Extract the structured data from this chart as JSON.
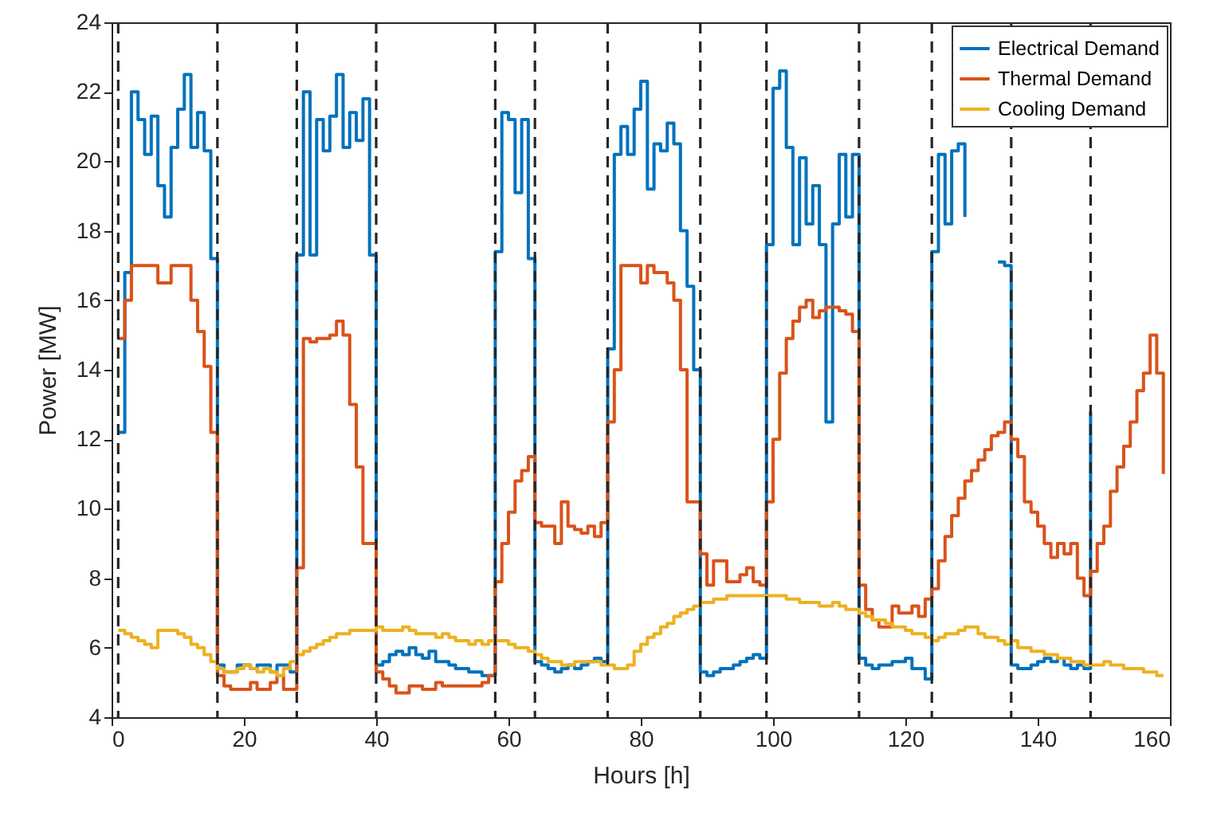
{
  "chart_data": {
    "type": "step",
    "xlabel": "Hours [h]",
    "ylabel": "Power [MW]",
    "xlim": [
      0,
      160
    ],
    "xticks": [
      0,
      20,
      40,
      60,
      80,
      100,
      120,
      140,
      160
    ],
    "ylim": [
      4,
      24
    ],
    "yticks": [
      4,
      6,
      8,
      10,
      12,
      14,
      16,
      18,
      20,
      22,
      24
    ],
    "legend": "top right",
    "grid": false,
    "x": [
      1,
      2,
      3,
      4,
      5,
      6,
      7,
      8,
      9,
      10,
      11,
      12,
      13,
      14,
      15,
      16,
      17,
      18,
      19,
      20,
      21,
      22,
      23,
      24,
      25,
      26,
      27,
      28,
      29,
      30,
      31,
      32,
      33,
      34,
      35,
      36,
      37,
      38,
      39,
      40,
      41,
      42,
      43,
      44,
      45,
      46,
      47,
      48,
      49,
      50,
      51,
      52,
      53,
      54,
      55,
      56,
      57,
      58,
      59,
      60,
      61,
      62,
      63,
      64,
      65,
      66,
      67,
      68,
      69,
      70,
      71,
      72,
      73,
      74,
      75,
      76,
      77,
      78,
      79,
      80,
      81,
      82,
      83,
      84,
      85,
      86,
      87,
      88,
      89,
      90,
      91,
      92,
      93,
      94,
      95,
      96,
      97,
      98,
      99,
      100,
      101,
      102,
      103,
      104,
      105,
      106,
      107,
      108,
      109,
      110,
      111,
      112,
      113,
      114,
      115,
      116,
      117,
      118,
      119,
      120,
      121,
      122,
      123,
      124,
      125,
      126,
      127,
      128,
      129,
      130,
      131,
      132,
      133,
      134,
      135,
      136,
      137,
      138,
      139,
      140,
      141,
      142,
      143,
      144,
      145,
      146,
      147,
      148,
      149,
      150,
      151,
      152,
      153,
      154,
      155,
      156,
      157,
      158,
      159
    ],
    "series": [
      {
        "name": "Electrical Demand",
        "color": "#0072bd",
        "values": [
          12.2,
          16.8,
          22,
          21.2,
          20.2,
          21.3,
          19.3,
          18.4,
          20.4,
          21.5,
          22.5,
          20.4,
          21.4,
          20.3,
          17.2,
          5.5,
          5.3,
          5.3,
          5.5,
          5.5,
          5.4,
          5.5,
          5.5,
          5.3,
          5.5,
          5.5,
          5.3,
          17.3,
          22.0,
          17.3,
          21.2,
          20.3,
          21.3,
          22.5,
          20.4,
          21.4,
          20.6,
          21.8,
          17.3,
          5.5,
          5.6,
          5.8,
          5.9,
          5.8,
          6.0,
          5.8,
          5.7,
          5.9,
          5.6,
          5.6,
          5.5,
          5.4,
          5.4,
          5.3,
          5.3,
          5.2,
          5.2,
          17.4,
          21.4,
          21.2,
          19.1,
          21.2,
          17.2,
          5.6,
          5.5,
          5.4,
          5.3,
          5.4,
          5.5,
          5.4,
          5.5,
          5.6,
          5.7,
          5.6,
          14.6,
          20.2,
          21.0,
          20.2,
          21.5,
          22.3,
          19.2,
          20.5,
          20.3,
          21.1,
          20.5,
          18.0,
          16.4,
          14.0,
          5.3,
          5.2,
          5.3,
          5.4,
          5.4,
          5.5,
          5.6,
          5.7,
          5.8,
          5.7,
          17.6,
          22.1,
          22.6,
          20.4,
          17.6,
          20.1,
          18.2,
          19.3,
          17.6,
          12.5,
          18.2,
          20.2,
          18.4,
          20.2,
          5.7,
          5.5,
          5.4,
          5.5,
          5.5,
          5.6,
          5.6,
          5.7,
          5.4,
          5.4,
          5.1,
          17.4,
          20.2,
          18.2,
          20.3,
          20.5,
          18.4,
          null,
          null,
          null,
          null,
          17.1,
          17.0,
          5.5,
          5.4,
          5.4,
          5.5,
          5.6,
          5.7,
          5.6,
          5.7,
          5.5,
          5.4,
          5.5,
          5.4,
          12.8,
          null,
          null,
          null,
          null,
          null,
          null,
          null,
          null,
          null,
          null,
          null
        ]
      },
      {
        "name": "Thermal Demand",
        "color": "#d95319",
        "values": [
          14.9,
          16.0,
          17.0,
          17.0,
          17.0,
          17.0,
          16.5,
          16.5,
          17.0,
          17.0,
          17.0,
          16.0,
          15.1,
          14.1,
          12.2,
          5.2,
          4.9,
          4.8,
          4.8,
          4.8,
          5.0,
          4.8,
          4.8,
          5.0,
          5.2,
          4.8,
          4.8,
          8.3,
          14.9,
          14.8,
          14.9,
          14.9,
          15.0,
          15.4,
          15.0,
          13.0,
          11.2,
          9.0,
          9.0,
          5.3,
          5.1,
          4.9,
          4.7,
          4.7,
          4.9,
          4.9,
          4.8,
          4.8,
          5.0,
          4.9,
          4.9,
          4.9,
          4.9,
          4.9,
          4.9,
          5.0,
          5.2,
          7.9,
          9.0,
          9.9,
          10.8,
          11.1,
          11.5,
          9.6,
          9.5,
          9.5,
          9.0,
          10.2,
          9.5,
          9.4,
          9.3,
          9.5,
          9.2,
          9.6,
          12.5,
          14.0,
          17.0,
          17.0,
          17.0,
          16.5,
          17.0,
          16.8,
          16.8,
          16.5,
          16.0,
          14.0,
          10.2,
          10.2,
          8.7,
          7.8,
          8.5,
          8.5,
          7.9,
          7.9,
          8.1,
          8.3,
          7.9,
          7.8,
          10.2,
          12.0,
          13.9,
          14.9,
          15.4,
          15.8,
          16.0,
          15.5,
          15.7,
          15.8,
          15.8,
          15.7,
          15.6,
          15.1,
          7.8,
          7.1,
          6.8,
          6.6,
          6.6,
          7.2,
          7.0,
          7.0,
          7.2,
          6.9,
          7.4,
          7.7,
          8.5,
          9.2,
          9.8,
          10.3,
          10.8,
          11.1,
          11.4,
          11.7,
          12.1,
          12.2,
          12.5,
          12.0,
          11.5,
          10.2,
          9.9,
          9.5,
          9.0,
          8.6,
          9.0,
          8.7,
          9.0,
          8.0,
          7.5,
          8.2,
          9.0,
          9.5,
          10.5,
          11.2,
          11.8,
          12.5,
          13.4,
          13.9,
          15.0,
          13.9,
          11.0
        ]
      },
      {
        "name": "Cooling Demand",
        "color": "#edb120",
        "values": [
          6.5,
          6.4,
          6.3,
          6.2,
          6.1,
          6.0,
          6.5,
          6.5,
          6.5,
          6.4,
          6.3,
          6.1,
          6.0,
          5.8,
          5.6,
          5.4,
          5.3,
          5.3,
          5.4,
          5.5,
          5.4,
          5.3,
          5.4,
          5.3,
          5.2,
          5.4,
          5.6,
          5.8,
          5.9,
          6.0,
          6.1,
          6.2,
          6.3,
          6.4,
          6.4,
          6.5,
          6.5,
          6.5,
          6.5,
          6.6,
          6.5,
          6.5,
          6.5,
          6.6,
          6.5,
          6.4,
          6.4,
          6.4,
          6.3,
          6.4,
          6.3,
          6.2,
          6.2,
          6.1,
          6.2,
          6.1,
          6.2,
          6.2,
          6.2,
          6.1,
          6.0,
          6.0,
          5.9,
          5.8,
          5.7,
          5.6,
          5.6,
          5.5,
          5.5,
          5.6,
          5.6,
          5.6,
          5.6,
          5.5,
          5.5,
          5.4,
          5.4,
          5.5,
          5.9,
          6.1,
          6.3,
          6.4,
          6.6,
          6.7,
          6.9,
          7.0,
          7.1,
          7.2,
          7.3,
          7.3,
          7.4,
          7.4,
          7.5,
          7.5,
          7.5,
          7.5,
          7.5,
          7.5,
          7.5,
          7.5,
          7.5,
          7.4,
          7.4,
          7.3,
          7.3,
          7.3,
          7.2,
          7.2,
          7.3,
          7.2,
          7.1,
          7.1,
          7.0,
          6.9,
          6.8,
          6.8,
          6.7,
          6.6,
          6.6,
          6.5,
          6.4,
          6.4,
          6.3,
          6.2,
          6.3,
          6.4,
          6.4,
          6.5,
          6.6,
          6.6,
          6.4,
          6.3,
          6.3,
          6.2,
          6.1,
          6.2,
          6.0,
          6.0,
          5.9,
          5.9,
          5.8,
          5.8,
          5.7,
          5.7,
          5.6,
          5.6,
          5.5,
          5.5,
          5.5,
          5.6,
          5.5,
          5.5,
          5.4,
          5.4,
          5.4,
          5.3,
          5.3,
          5.2,
          5.2
        ]
      }
    ],
    "ref_lines": [
      {
        "axis": "x",
        "value": 1,
        "color": "#262626",
        "line_style": "dashed"
      },
      {
        "axis": "x",
        "value": 16,
        "color": "#262626",
        "line_style": "dashed"
      },
      {
        "axis": "x",
        "value": 28,
        "color": "#262626",
        "line_style": "dashed"
      },
      {
        "axis": "x",
        "value": 40,
        "color": "#262626",
        "line_style": "dashed"
      },
      {
        "axis": "x",
        "value": 58,
        "color": "#262626",
        "line_style": "dashed"
      },
      {
        "axis": "x",
        "value": 64,
        "color": "#262626",
        "line_style": "dashed"
      },
      {
        "axis": "x",
        "value": 75,
        "color": "#262626",
        "line_style": "dashed"
      },
      {
        "axis": "x",
        "value": 89,
        "color": "#262626",
        "line_style": "dashed"
      },
      {
        "axis": "x",
        "value": 99,
        "color": "#262626",
        "line_style": "dashed"
      },
      {
        "axis": "x",
        "value": 113,
        "color": "#262626",
        "line_style": "dashed"
      },
      {
        "axis": "x",
        "value": 124,
        "color": "#262626",
        "line_style": "dashed"
      },
      {
        "axis": "x",
        "value": 136,
        "color": "#262626",
        "line_style": "dashed"
      },
      {
        "axis": "x",
        "value": 148,
        "color": "#262626",
        "line_style": "dashed"
      }
    ]
  }
}
